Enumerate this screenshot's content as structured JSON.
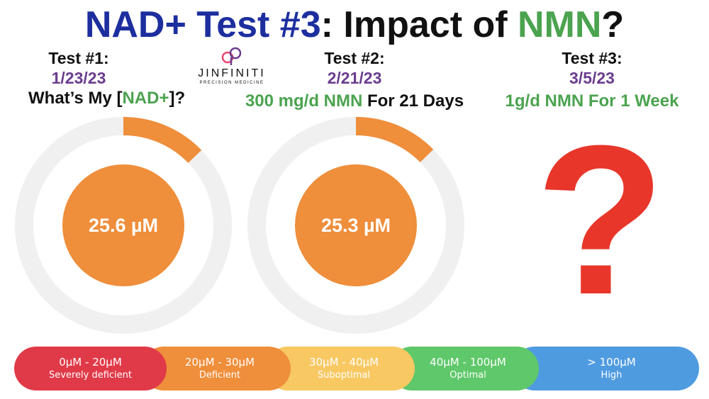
{
  "title": {
    "part1": "NAD+ Test #3",
    "part2": ": Impact of ",
    "part3": "NMN",
    "part4": "?"
  },
  "colors": {
    "title_blue": "#1d2f9e",
    "green": "#4ba34f",
    "purple": "#6b3d8e",
    "orange": "#ef8e3b",
    "ring_gray": "#f0f0f0",
    "question_red": "#e8362a"
  },
  "tests": [
    {
      "label": "Test #1:",
      "date": "1/23/23",
      "sub_pre": "What’s My [",
      "sub_mid": "NAD+",
      "sub_post": "]?",
      "value": "25.6 µM",
      "level": 25.6
    },
    {
      "label": "Test #2:",
      "date": "2/21/23",
      "sub_green": "300 mg/d NMN",
      "sub_black": " For 21 Days",
      "value": "25.3 µM",
      "level": 25.3
    },
    {
      "label": "Test #3:",
      "date": "3/5/23",
      "sub_green": "1g/d NMN For 1 Week",
      "value": "?"
    }
  ],
  "logo": {
    "icon": "jinfiniti-logo-icon",
    "word": "JINFINITI",
    "tag": "PRECISION MEDICINE"
  },
  "scale": [
    {
      "range": "0µM - 20µM",
      "name": "Severely deficient",
      "color": "#e03a48"
    },
    {
      "range": "20µM - 30µM",
      "name": "Deficient",
      "color": "#ef8e3b"
    },
    {
      "range": "30µM - 40µM",
      "name": "Suboptimal",
      "color": "#f8c862"
    },
    {
      "range": "40µM - 100µM",
      "name": "Optimal",
      "color": "#5fc86a"
    },
    {
      "range": "> 100µM",
      "name": "High",
      "color": "#4f9be0"
    }
  ]
}
